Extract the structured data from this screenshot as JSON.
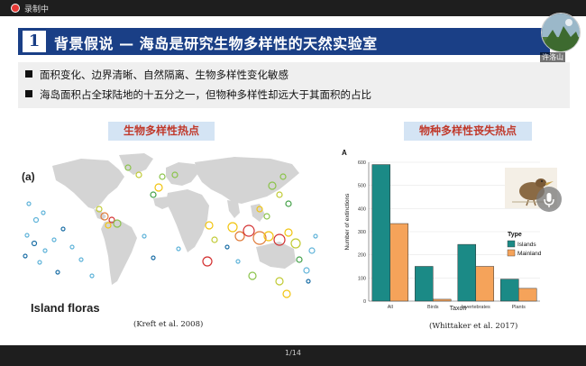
{
  "recording": {
    "label": "录制中"
  },
  "slide": {
    "title_number": "1",
    "title": "背景假说 — 海岛是研究生物多样性的天然实验室",
    "bullets": [
      "面积变化、边界清晰、自然隔离、生物多样性变化敏感",
      "海岛面积占全球陆地的十五分之一，但物种多样性却远大于其面积的占比"
    ],
    "left_panel": {
      "heading": "生物多样性热点",
      "panel_letter": "(a)",
      "map_label": "Island floras",
      "citation": "(Kreft et al. 2008)"
    },
    "right_panel": {
      "heading": "物种多样性丧失热点",
      "citation": "(Whittaker et al. 2017)"
    }
  },
  "chart_data": {
    "type": "bar",
    "panel_letter": "A",
    "categories": [
      "All",
      "Birds",
      "Invertebrates",
      "Plants"
    ],
    "series": [
      {
        "name": "Islands",
        "values": [
          590,
          150,
          245,
          95
        ]
      },
      {
        "name": "Mainland",
        "values": [
          335,
          8,
          150,
          55
        ]
      }
    ],
    "xlabel": "Taxon",
    "ylabel": "Number of extinctions",
    "ylim": [
      0,
      600
    ],
    "yticks": [
      0,
      100,
      200,
      300,
      400,
      500,
      600
    ],
    "legend": {
      "title": "Type",
      "position": "right"
    },
    "colors": {
      "Islands": "#1b8a86",
      "Mainland": "#f5a35a"
    }
  },
  "footer": {
    "page_indicator": "1/14"
  },
  "participant": {
    "name": "许洛山"
  }
}
